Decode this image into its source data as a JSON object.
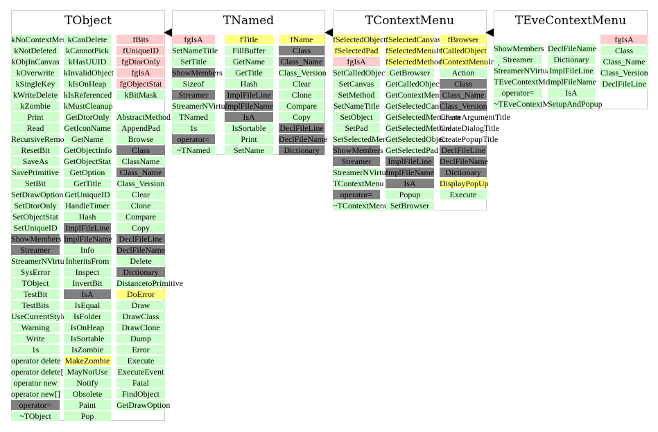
{
  "classes": [
    {
      "id": "tobject",
      "title": "TObject",
      "columns": [
        [
          {
            "t": "kNoContextMenu",
            "k": "method"
          },
          {
            "t": "kNotDeleted",
            "k": "method"
          },
          {
            "t": "kObjInCanvas",
            "k": "method"
          },
          {
            "t": "kOverwrite",
            "k": "method"
          },
          {
            "t": "kSingleKey",
            "k": "method"
          },
          {
            "t": "kWriteDelete",
            "k": "method"
          },
          {
            "t": "kZombie",
            "k": "method"
          },
          {
            "t": "Print",
            "k": "method"
          },
          {
            "t": "Read",
            "k": "method"
          },
          {
            "t": "RecursiveRemove",
            "k": "method"
          },
          {
            "t": "ResetBit",
            "k": "method"
          },
          {
            "t": "SaveAs",
            "k": "method"
          },
          {
            "t": "SavePrimitive",
            "k": "method"
          },
          {
            "t": "SetBit",
            "k": "method"
          },
          {
            "t": "SetDrawOption",
            "k": "method"
          },
          {
            "t": "SetDtorOnly",
            "k": "method"
          },
          {
            "t": "SetObjectStat",
            "k": "method"
          },
          {
            "t": "SetUniqueID",
            "k": "method"
          },
          {
            "t": "ShowMembers",
            "k": "gray"
          },
          {
            "t": "Streamer",
            "k": "gray"
          },
          {
            "t": "StreamerNVirtual",
            "k": "method"
          },
          {
            "t": "SysError",
            "k": "method"
          },
          {
            "t": "TObject",
            "k": "method"
          },
          {
            "t": "TestBit",
            "k": "method"
          },
          {
            "t": "TestBits",
            "k": "method"
          },
          {
            "t": "UseCurrentStyle",
            "k": "method"
          },
          {
            "t": "Warning",
            "k": "method"
          },
          {
            "t": "Write",
            "k": "method"
          },
          {
            "t": "1s",
            "k": "method"
          },
          {
            "t": "operator delete",
            "k": "method"
          },
          {
            "t": "operator delete[]",
            "k": "method"
          },
          {
            "t": "operator new",
            "k": "method"
          },
          {
            "t": "operator new[]",
            "k": "method"
          },
          {
            "t": "operator=",
            "k": "gray"
          },
          {
            "t": "~TObject",
            "k": "method"
          }
        ],
        [
          {
            "t": "kCanDelete",
            "k": "method"
          },
          {
            "t": "kCannotPick",
            "k": "method"
          },
          {
            "t": "kHasUUID",
            "k": "method"
          },
          {
            "t": "kInvalidObject",
            "k": "method"
          },
          {
            "t": "kIsOnHeap",
            "k": "method"
          },
          {
            "t": "kIsReferenced",
            "k": "method"
          },
          {
            "t": "kMustCleanup",
            "k": "method"
          },
          {
            "t": "GetDtorOnly",
            "k": "method"
          },
          {
            "t": "GetIconName",
            "k": "method"
          },
          {
            "t": "GetName",
            "k": "method"
          },
          {
            "t": "GetObjectInfo",
            "k": "method"
          },
          {
            "t": "GetObjectStat",
            "k": "method"
          },
          {
            "t": "GetOption",
            "k": "method"
          },
          {
            "t": "GetTitle",
            "k": "method"
          },
          {
            "t": "GetUniqueID",
            "k": "method"
          },
          {
            "t": "HandleTimer",
            "k": "method"
          },
          {
            "t": "Hash",
            "k": "method"
          },
          {
            "t": "ImplFileLine",
            "k": "gray"
          },
          {
            "t": "ImplFileName",
            "k": "gray"
          },
          {
            "t": "Info",
            "k": "method"
          },
          {
            "t": "InheritsFrom",
            "k": "method"
          },
          {
            "t": "Inspect",
            "k": "method"
          },
          {
            "t": "InvertBit",
            "k": "method"
          },
          {
            "t": "IsA",
            "k": "gray"
          },
          {
            "t": "IsEqual",
            "k": "method"
          },
          {
            "t": "IsFolder",
            "k": "method"
          },
          {
            "t": "IsOnHeap",
            "k": "method"
          },
          {
            "t": "IsSortable",
            "k": "method"
          },
          {
            "t": "IsZombie",
            "k": "method"
          },
          {
            "t": "MakeZombie",
            "k": "hl"
          },
          {
            "t": "MayNotUse",
            "k": "method"
          },
          {
            "t": "Notify",
            "k": "method"
          },
          {
            "t": "Obsolete",
            "k": "method"
          },
          {
            "t": "Paint",
            "k": "method"
          },
          {
            "t": "Pop",
            "k": "method"
          }
        ],
        [
          {
            "t": "fBits",
            "k": "data"
          },
          {
            "t": "fUniqueID",
            "k": "data"
          },
          {
            "t": "fgDtorOnly",
            "k": "data"
          },
          {
            "t": "fgIsA",
            "k": "data"
          },
          {
            "t": "fgObjectStat",
            "k": "data"
          },
          {
            "t": "kBitMask",
            "k": "method"
          },
          {
            "t": "",
            "k": "plain"
          },
          {
            "t": "AbstractMethod",
            "k": "method"
          },
          {
            "t": "AppendPad",
            "k": "method"
          },
          {
            "t": "Browse",
            "k": "method"
          },
          {
            "t": "Class",
            "k": "gray"
          },
          {
            "t": "ClassName",
            "k": "method"
          },
          {
            "t": "Class_Name",
            "k": "gray"
          },
          {
            "t": "Class_Version",
            "k": "method"
          },
          {
            "t": "Clear",
            "k": "method"
          },
          {
            "t": "Clone",
            "k": "method"
          },
          {
            "t": "Compare",
            "k": "method"
          },
          {
            "t": "Copy",
            "k": "method"
          },
          {
            "t": "DeclFileLine",
            "k": "gray"
          },
          {
            "t": "DeclFileName",
            "k": "gray"
          },
          {
            "t": "Delete",
            "k": "method"
          },
          {
            "t": "Dictionary",
            "k": "gray"
          },
          {
            "t": "DistancetoPrimitive",
            "k": "method"
          },
          {
            "t": "DoError",
            "k": "hl"
          },
          {
            "t": "Draw",
            "k": "method"
          },
          {
            "t": "DrawClass",
            "k": "method"
          },
          {
            "t": "DrawClone",
            "k": "method"
          },
          {
            "t": "Dump",
            "k": "method"
          },
          {
            "t": "Error",
            "k": "method"
          },
          {
            "t": "Execute",
            "k": "method"
          },
          {
            "t": "ExecuteEvent",
            "k": "method"
          },
          {
            "t": "Fatal",
            "k": "method"
          },
          {
            "t": "FindObject",
            "k": "method"
          },
          {
            "t": "GetDrawOption",
            "k": "method"
          }
        ]
      ]
    },
    {
      "id": "tnamed",
      "title": "TNamed",
      "columns": [
        [
          {
            "t": "fgIsA",
            "k": "data"
          },
          {
            "t": "SetNameTitle",
            "k": "method"
          },
          {
            "t": "SetTitle",
            "k": "method"
          },
          {
            "t": "ShowMembers",
            "k": "gray"
          },
          {
            "t": "Sizeof",
            "k": "method"
          },
          {
            "t": "Streamer",
            "k": "gray"
          },
          {
            "t": "StreamerNVirtual",
            "k": "method"
          },
          {
            "t": "TNamed",
            "k": "method"
          },
          {
            "t": "1s",
            "k": "method"
          },
          {
            "t": "operator=",
            "k": "gray"
          },
          {
            "t": "~TNamed",
            "k": "method"
          }
        ],
        [
          {
            "t": "fTitle",
            "k": "hl"
          },
          {
            "t": "FillBuffer",
            "k": "method"
          },
          {
            "t": "GetName",
            "k": "method"
          },
          {
            "t": "GetTitle",
            "k": "method"
          },
          {
            "t": "Hash",
            "k": "method"
          },
          {
            "t": "ImplFileLine",
            "k": "gray"
          },
          {
            "t": "ImplFileName",
            "k": "gray"
          },
          {
            "t": "IsA",
            "k": "gray"
          },
          {
            "t": "IsSortable",
            "k": "method"
          },
          {
            "t": "Print",
            "k": "method"
          },
          {
            "t": "SetName",
            "k": "method"
          }
        ],
        [
          {
            "t": "fName",
            "k": "hl"
          },
          {
            "t": "Class",
            "k": "gray"
          },
          {
            "t": "Class_Name",
            "k": "gray"
          },
          {
            "t": "Class_Version",
            "k": "method"
          },
          {
            "t": "Clear",
            "k": "method"
          },
          {
            "t": "Clone",
            "k": "method"
          },
          {
            "t": "Compare",
            "k": "method"
          },
          {
            "t": "Copy",
            "k": "method"
          },
          {
            "t": "DeclFileLine",
            "k": "gray"
          },
          {
            "t": "DeclFileName",
            "k": "gray"
          },
          {
            "t": "Dictionary",
            "k": "gray"
          }
        ]
      ]
    },
    {
      "id": "tcontextmenu",
      "title": "TContextMenu",
      "columns": [
        [
          {
            "t": "fSelectedObject",
            "k": "hl"
          },
          {
            "t": "fSelectedPad",
            "k": "hl"
          },
          {
            "t": "fgIsA",
            "k": "data"
          },
          {
            "t": "SetCalledObject",
            "k": "method"
          },
          {
            "t": "SetCanvas",
            "k": "method"
          },
          {
            "t": "SetMethod",
            "k": "method"
          },
          {
            "t": "SetNameTitle",
            "k": "method"
          },
          {
            "t": "SetObject",
            "k": "method"
          },
          {
            "t": "SetPad",
            "k": "method"
          },
          {
            "t": "SetSelectedMenuItem",
            "k": "method"
          },
          {
            "t": "ShowMembers",
            "k": "gray"
          },
          {
            "t": "Streamer",
            "k": "gray"
          },
          {
            "t": "StreamerNVirtual",
            "k": "method"
          },
          {
            "t": "TContextMenu",
            "k": "method"
          },
          {
            "t": "operator=",
            "k": "gray"
          },
          {
            "t": "~TContextMenu",
            "k": "method"
          }
        ],
        [
          {
            "t": "fSelectedCanvas",
            "k": "hl"
          },
          {
            "t": "fSelectedMenuItem",
            "k": "hl"
          },
          {
            "t": "fSelectedMethod",
            "k": "hl"
          },
          {
            "t": "GetBrowser",
            "k": "method"
          },
          {
            "t": "GetCalledObject",
            "k": "method"
          },
          {
            "t": "GetContextMenuItem",
            "k": "method"
          },
          {
            "t": "GetSelectedCanvas",
            "k": "method"
          },
          {
            "t": "GetSelectedMenuItem",
            "k": "method"
          },
          {
            "t": "GetSelectedMethod",
            "k": "method"
          },
          {
            "t": "GetSelectedObject",
            "k": "method"
          },
          {
            "t": "GetSelectedPad",
            "k": "method"
          },
          {
            "t": "ImplFileLine",
            "k": "gray"
          },
          {
            "t": "ImplFileName",
            "k": "gray"
          },
          {
            "t": "IsA",
            "k": "gray"
          },
          {
            "t": "Popup",
            "k": "method"
          },
          {
            "t": "SetBrowser",
            "k": "method"
          }
        ],
        [
          {
            "t": "fBrowser",
            "k": "hl"
          },
          {
            "t": "fCalledObject",
            "k": "hl"
          },
          {
            "t": "fContextMenuImp",
            "k": "hl"
          },
          {
            "t": "Action",
            "k": "method"
          },
          {
            "t": "Class",
            "k": "gray"
          },
          {
            "t": "Class_Name",
            "k": "gray"
          },
          {
            "t": "Class_Version",
            "k": "gray"
          },
          {
            "t": "CreateArgumentTitle",
            "k": "plain"
          },
          {
            "t": "CreateDialogTitle",
            "k": "plain"
          },
          {
            "t": "CreatePopupTitle",
            "k": "plain"
          },
          {
            "t": "DeclFileLine",
            "k": "gray"
          },
          {
            "t": "DeclFileName",
            "k": "gray"
          },
          {
            "t": "Dictionary",
            "k": "gray"
          },
          {
            "t": "DisplayPopUp",
            "k": "hl"
          },
          {
            "t": "Execute",
            "k": "method"
          }
        ]
      ]
    },
    {
      "id": "tevecontextmenu",
      "title": "TEveContextMenu",
      "columns": [
        [
          {
            "t": "ShowMembers",
            "k": "method"
          },
          {
            "t": "Streamer",
            "k": "method"
          },
          {
            "t": "StreamerNVirtual",
            "k": "method"
          },
          {
            "t": "TEveContextMenu",
            "k": "method"
          },
          {
            "t": "operator=",
            "k": "method"
          },
          {
            "t": "~TEveContextMenu",
            "k": "method"
          }
        ],
        [
          {
            "t": "DeclFileName",
            "k": "method"
          },
          {
            "t": "Dictionary",
            "k": "method"
          },
          {
            "t": "ImplFileLine",
            "k": "method"
          },
          {
            "t": "ImplFileName",
            "k": "method"
          },
          {
            "t": "IsA",
            "k": "method"
          },
          {
            "t": "SetupAndPopup",
            "k": "method"
          }
        ],
        [
          {
            "t": "fgIsA",
            "k": "data"
          },
          {
            "t": "Class",
            "k": "method"
          },
          {
            "t": "Class_Name",
            "k": "method"
          },
          {
            "t": "Class_Version",
            "k": "method"
          },
          {
            "t": "DeclFileLine",
            "k": "method"
          }
        ]
      ]
    }
  ],
  "colors": {
    "method": "#ccffcc",
    "data": "#ffcccc",
    "highlight": "#ffff80",
    "inherited": "#808080",
    "border": "#c8c8c8",
    "arrow": "#000000"
  }
}
